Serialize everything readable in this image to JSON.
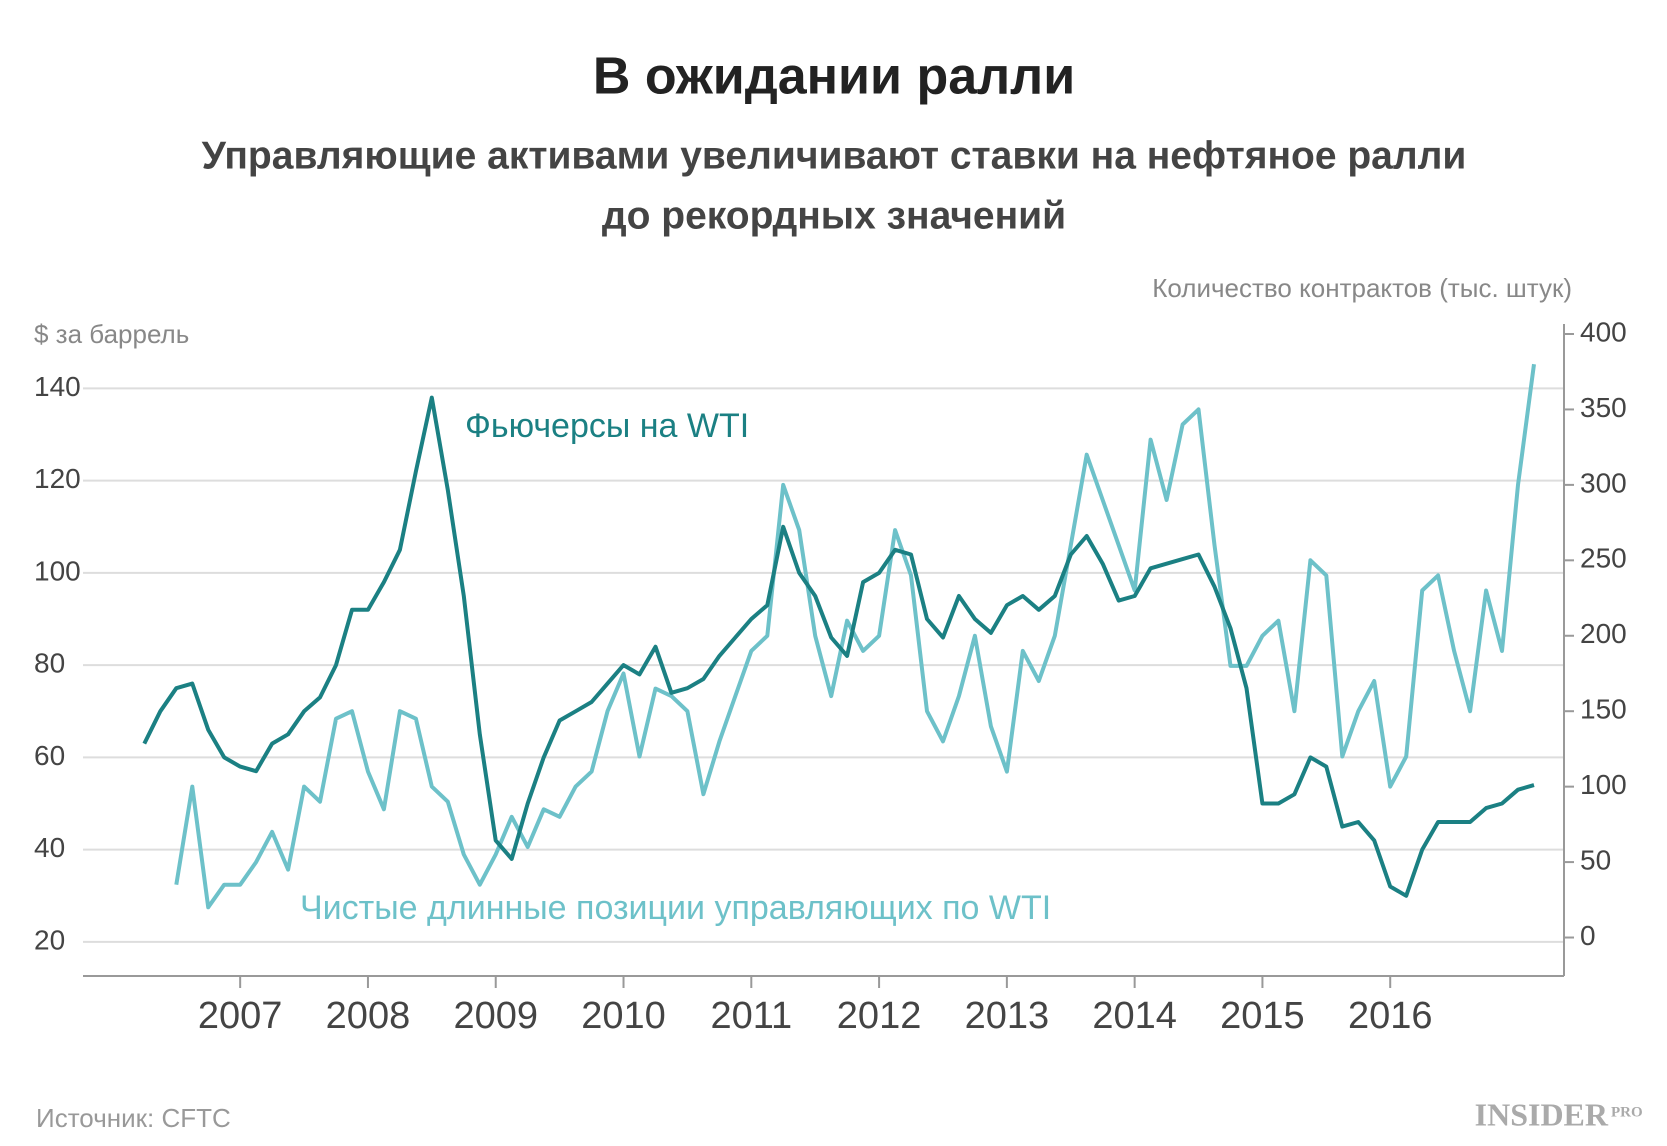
{
  "chart_data": {
    "type": "line",
    "title": "В ожидании ралли",
    "subtitle": [
      "Управляющие активами увеличивают ставки на нефтяное ралли",
      "до рекордных значений"
    ],
    "y_label": "$ за баррель",
    "y2_label": "Количество контрактов (тыс. штук)",
    "source": "Источник: CFTC",
    "brand": [
      "INSIDER",
      "PRO"
    ],
    "grid": true,
    "xlim": [
      2005.77,
      2017.36
    ],
    "xticks": [
      2007,
      2008,
      2009,
      2010,
      2011,
      2012,
      2013,
      2014,
      2015,
      2016
    ],
    "ylim": [
      12.6,
      151.8
    ],
    "yticks": [
      20,
      40,
      60,
      80,
      100,
      120,
      140
    ],
    "y2lim": [
      -25.5,
      400
    ],
    "y2ticks": [
      0,
      50,
      100,
      150,
      200,
      250,
      300,
      350,
      400
    ],
    "x": [
      2006.25,
      2006.375,
      2006.5,
      2006.625,
      2006.75,
      2006.875,
      2007,
      2007.125,
      2007.25,
      2007.375,
      2007.5,
      2007.625,
      2007.75,
      2007.875,
      2008,
      2008.125,
      2008.25,
      2008.375,
      2008.5,
      2008.625,
      2008.75,
      2008.875,
      2009,
      2009.125,
      2009.25,
      2009.375,
      2009.5,
      2009.625,
      2009.75,
      2009.875,
      2010,
      2010.125,
      2010.25,
      2010.375,
      2010.5,
      2010.625,
      2010.75,
      2010.875,
      2011,
      2011.125,
      2011.25,
      2011.375,
      2011.5,
      2011.625,
      2011.75,
      2011.875,
      2012,
      2012.125,
      2012.25,
      2012.375,
      2012.5,
      2012.625,
      2012.75,
      2012.875,
      2013,
      2013.125,
      2013.25,
      2013.375,
      2013.5,
      2013.625,
      2013.75,
      2013.875,
      2014,
      2014.125,
      2014.25,
      2014.375,
      2014.5,
      2014.625,
      2014.75,
      2014.875,
      2015,
      2015.125,
      2015.25,
      2015.375,
      2015.5,
      2015.625,
      2015.75,
      2015.875,
      2016,
      2016.125,
      2016.25,
      2016.375,
      2016.5,
      2016.625,
      2016.75,
      2016.875,
      2017,
      2017.125
    ],
    "series": [
      {
        "name": "Фьючерсы на WTI",
        "color": "#1b8083",
        "axis": "y",
        "values": [
          63,
          70,
          75,
          76,
          66,
          60,
          58,
          57,
          63,
          65,
          70,
          73,
          80,
          92,
          92,
          98,
          105,
          122,
          138,
          118,
          95,
          65,
          42,
          38,
          50,
          60,
          68,
          70,
          72,
          76,
          80,
          78,
          84,
          74,
          75,
          77,
          82,
          86,
          90,
          93,
          110,
          100,
          95,
          86,
          82,
          98,
          100,
          105,
          104,
          90,
          86,
          95,
          90,
          87,
          93,
          95,
          92,
          95,
          104,
          108,
          102,
          94,
          95,
          101,
          102,
          103,
          104,
          97,
          88,
          75,
          50,
          50,
          52,
          60,
          58,
          45,
          46,
          42,
          32,
          30,
          40,
          46,
          46,
          46,
          49,
          50,
          53,
          54
        ]
      },
      {
        "name": "Чистые длинные позиции управляющих по WTI",
        "color": "#6dc1c9",
        "axis": "y2",
        "values": [
          null,
          null,
          35,
          100,
          20,
          35,
          35,
          50,
          70,
          45,
          100,
          90,
          145,
          150,
          110,
          85,
          150,
          145,
          100,
          90,
          55,
          35,
          55,
          80,
          60,
          85,
          80,
          100,
          110,
          150,
          175,
          120,
          165,
          160,
          150,
          95,
          130,
          160,
          190,
          200,
          300,
          270,
          200,
          160,
          210,
          190,
          200,
          270,
          240,
          150,
          130,
          160,
          200,
          140,
          110,
          190,
          170,
          200,
          260,
          320,
          290,
          260,
          230,
          330,
          290,
          340,
          350,
          260,
          180,
          180,
          200,
          210,
          150,
          250,
          240,
          120,
          150,
          170,
          100,
          120,
          230,
          240,
          190,
          150,
          230,
          190,
          300,
          380
        ]
      }
    ]
  }
}
